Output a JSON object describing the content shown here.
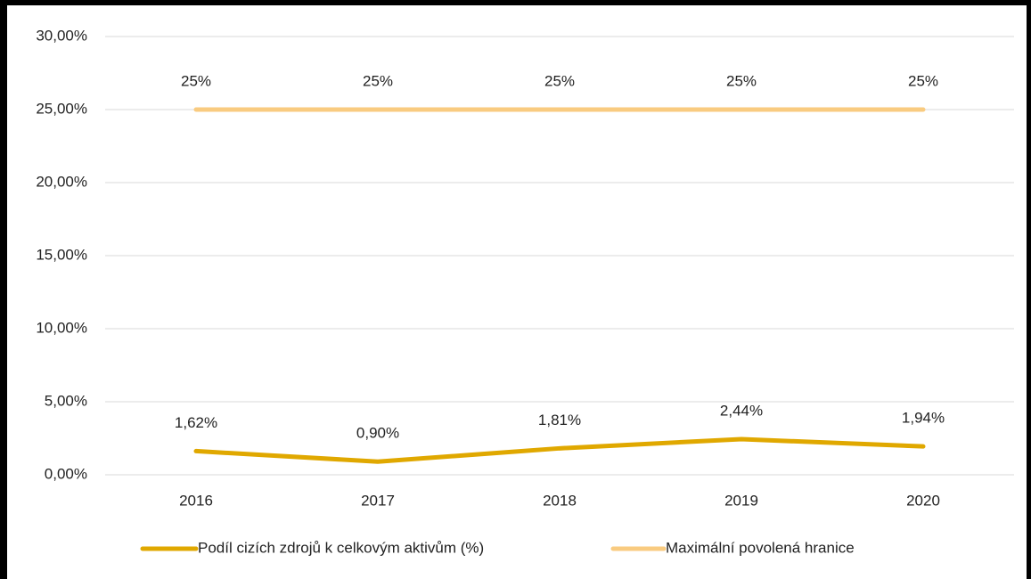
{
  "chart_data": {
    "type": "line",
    "categories": [
      "2016",
      "2017",
      "2018",
      "2019",
      "2020"
    ],
    "series": [
      {
        "name": "Podíl cizích zdrojů k celkovým aktivům (%)",
        "color": "#e0a800",
        "values": [
          1.62,
          0.9,
          1.81,
          2.44,
          1.94
        ],
        "value_labels": [
          "1,62%",
          "0,90%",
          "1,81%",
          "2,44%",
          "1,94%"
        ]
      },
      {
        "name": "Maximální povolená hranice",
        "color": "#f9cb80",
        "values": [
          25,
          25,
          25,
          25,
          25
        ],
        "value_labels": [
          "25%",
          "25%",
          "25%",
          "25%",
          "25%"
        ]
      }
    ],
    "ylim": [
      0,
      30
    ],
    "yticks": [
      {
        "value": 0,
        "label": "0,00%"
      },
      {
        "value": 5,
        "label": "5,00%"
      },
      {
        "value": 10,
        "label": "10,00%"
      },
      {
        "value": 15,
        "label": "15,00%"
      },
      {
        "value": 20,
        "label": "20,00%"
      },
      {
        "value": 25,
        "label": "25,00%"
      },
      {
        "value": 30,
        "label": "30,00%"
      }
    ],
    "grid": true,
    "legend": "bottom"
  }
}
